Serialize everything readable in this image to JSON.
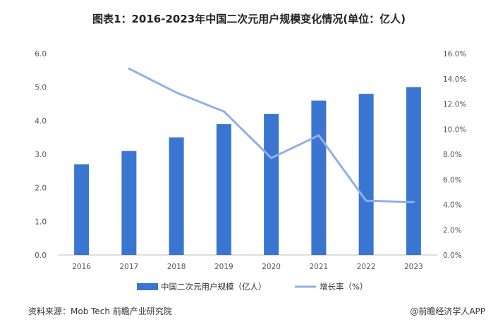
{
  "chart_data": {
    "type": "bar",
    "title": "图表1：2016-2023年中国二次元用户规模变化情况(单位：亿人)",
    "categories": [
      "2016",
      "2017",
      "2018",
      "2019",
      "2020",
      "2021",
      "2022",
      "2023"
    ],
    "series": [
      {
        "name": "中国二次元用户规模（亿人）",
        "type": "bar",
        "axis": "left",
        "color": "#3a76d1",
        "values": [
          2.7,
          3.1,
          3.5,
          3.9,
          4.2,
          4.6,
          4.8,
          5.0
        ]
      },
      {
        "name": "增长率（%）",
        "type": "line",
        "axis": "right",
        "color": "#8fb0ea",
        "values": [
          null,
          14.8,
          12.9,
          11.4,
          7.7,
          9.5,
          4.3,
          4.2
        ]
      }
    ],
    "y_left": {
      "min": 0,
      "max": 6,
      "ticks": [
        "0.0",
        "1.0",
        "2.0",
        "3.0",
        "4.0",
        "5.0",
        "6.0"
      ]
    },
    "y_right": {
      "min": 0,
      "max": 16,
      "ticks": [
        "0.0%",
        "2.0%",
        "4.0%",
        "6.0%",
        "8.0%",
        "10.0%",
        "12.0%",
        "14.0%",
        "16.0%"
      ]
    },
    "grid": false,
    "legend_position": "bottom"
  },
  "footer": {
    "source": "资料来源：Mob Tech 前瞻产业研究院",
    "brand": "@前瞻经济学人APP"
  }
}
